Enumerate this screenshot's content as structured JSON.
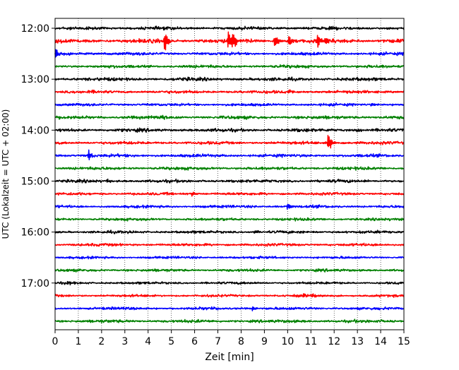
{
  "chart_data": {
    "type": "line",
    "title": "",
    "xlabel": "Zeit  [min]",
    "ylabel": "UTC (Lokalzeit = UTC + 02:00)",
    "xlim": [
      0,
      15
    ],
    "x_ticks": [
      0,
      1,
      2,
      3,
      4,
      5,
      6,
      7,
      8,
      9,
      10,
      11,
      12,
      13,
      14,
      15
    ],
    "y_ticks": [
      {
        "label": "12:00",
        "hour": 12.0
      },
      {
        "label": "13:00",
        "hour": 13.0
      },
      {
        "label": "14:00",
        "hour": 14.0
      },
      {
        "label": "15:00",
        "hour": 15.0
      },
      {
        "label": "16:00",
        "hour": 16.0
      },
      {
        "label": "17:00",
        "hour": 17.0
      }
    ],
    "x_grid": "dotted",
    "trace_colors": [
      "#000000",
      "#ff0000",
      "#0000ff",
      "#008000"
    ],
    "series": [
      {
        "start": "12:00",
        "color": "#000000",
        "noise": 1.0,
        "events": []
      },
      {
        "start": "12:15",
        "color": "#ff0000",
        "noise": 1.3,
        "events": [
          {
            "t": 4.72,
            "amp": 16
          },
          {
            "t": 7.45,
            "amp": 14
          },
          {
            "t": 7.65,
            "amp": 9
          },
          {
            "t": 9.45,
            "amp": 11
          },
          {
            "t": 10.05,
            "amp": 9
          },
          {
            "t": 11.3,
            "amp": 10
          },
          {
            "t": 11.6,
            "amp": 8
          }
        ]
      },
      {
        "start": "12:30",
        "color": "#0000ff",
        "noise": 1.0,
        "events": [
          {
            "t": 0.02,
            "amp": 8
          }
        ]
      },
      {
        "start": "12:45",
        "color": "#008000",
        "noise": 1.0,
        "events": []
      },
      {
        "start": "13:00",
        "color": "#000000",
        "noise": 1.1,
        "events": []
      },
      {
        "start": "13:15",
        "color": "#ff0000",
        "noise": 1.0,
        "events": [
          {
            "t": 10.05,
            "amp": 4
          }
        ]
      },
      {
        "start": "13:30",
        "color": "#0000ff",
        "noise": 0.9,
        "events": [
          {
            "t": 13.6,
            "amp": 3
          }
        ]
      },
      {
        "start": "13:45",
        "color": "#008000",
        "noise": 1.1,
        "events": [
          {
            "t": 4.6,
            "amp": 3
          }
        ]
      },
      {
        "start": "14:00",
        "color": "#000000",
        "noise": 1.1,
        "events": [
          {
            "t": 13.0,
            "amp": 3
          }
        ]
      },
      {
        "start": "14:15",
        "color": "#ff0000",
        "noise": 1.0,
        "events": [
          {
            "t": 11.75,
            "amp": 14
          }
        ]
      },
      {
        "start": "14:30",
        "color": "#0000ff",
        "noise": 1.0,
        "events": [
          {
            "t": 1.45,
            "amp": 9
          }
        ]
      },
      {
        "start": "14:45",
        "color": "#008000",
        "noise": 1.0,
        "events": []
      },
      {
        "start": "15:00",
        "color": "#000000",
        "noise": 1.0,
        "events": [
          {
            "t": 2.25,
            "amp": 3
          }
        ]
      },
      {
        "start": "15:15",
        "color": "#ff0000",
        "noise": 0.9,
        "events": [
          {
            "t": 5.9,
            "amp": 4
          }
        ]
      },
      {
        "start": "15:30",
        "color": "#0000ff",
        "noise": 0.9,
        "events": [
          {
            "t": 10.0,
            "amp": 5
          }
        ]
      },
      {
        "start": "15:45",
        "color": "#008000",
        "noise": 0.9,
        "events": []
      },
      {
        "start": "16:00",
        "color": "#000000",
        "noise": 0.9,
        "events": [
          {
            "t": 8.6,
            "amp": 3
          }
        ]
      },
      {
        "start": "16:15",
        "color": "#ff0000",
        "noise": 0.9,
        "events": []
      },
      {
        "start": "16:30",
        "color": "#0000ff",
        "noise": 0.8,
        "events": []
      },
      {
        "start": "16:45",
        "color": "#008000",
        "noise": 0.9,
        "events": []
      },
      {
        "start": "17:00",
        "color": "#000000",
        "noise": 0.8,
        "events": [
          {
            "t": 0.55,
            "amp": 3
          }
        ]
      },
      {
        "start": "17:15",
        "color": "#ff0000",
        "noise": 0.8,
        "events": [
          {
            "t": 10.7,
            "amp": 5
          },
          {
            "t": 11.05,
            "amp": 4
          }
        ]
      },
      {
        "start": "17:30",
        "color": "#0000ff",
        "noise": 0.9,
        "events": [
          {
            "t": 8.5,
            "amp": 3
          }
        ]
      },
      {
        "start": "17:45",
        "color": "#008000",
        "noise": 1.0,
        "events": []
      }
    ]
  }
}
